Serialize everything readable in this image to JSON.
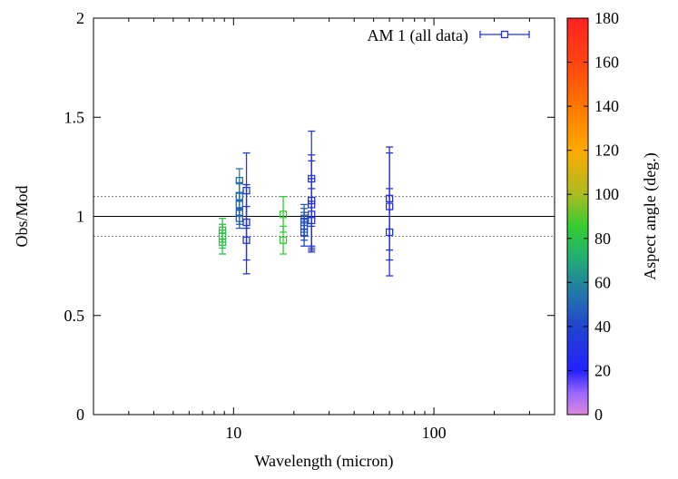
{
  "chart_data": {
    "type": "scatter",
    "title": "",
    "xlabel": "Wavelength (micron)",
    "ylabel": "Obs/Mod",
    "x_scale": "log",
    "xlim": [
      2,
      400
    ],
    "ylim": [
      0,
      2
    ],
    "x_ticks": [
      10,
      100
    ],
    "x_tick_labels": [
      "10",
      "100"
    ],
    "y_ticks": [
      0,
      0.5,
      1,
      1.5,
      2
    ],
    "y_tick_labels": [
      "0",
      "0.5",
      "1",
      "1.5",
      "2"
    ],
    "grid": false,
    "legend": {
      "position": "top-right",
      "entries": [
        "AM 1 (all data)"
      ]
    },
    "reference_lines": [
      {
        "y": 1.0,
        "style": "solid"
      },
      {
        "y": 0.9,
        "style": "dotted"
      },
      {
        "y": 1.1,
        "style": "dotted"
      }
    ],
    "colorbar": {
      "label": "Aspect angle (deg.)",
      "range": [
        0,
        180
      ],
      "ticks": [
        0,
        20,
        40,
        60,
        80,
        100,
        120,
        140,
        160,
        180
      ],
      "tick_labels": [
        "0",
        "20",
        "40",
        "60",
        "80",
        "100",
        "120",
        "140",
        "160",
        "180"
      ],
      "color_stops": [
        {
          "value": 0,
          "color": "#dd88dd"
        },
        {
          "value": 10,
          "color": "#9966ff"
        },
        {
          "value": 20,
          "color": "#2222ff"
        },
        {
          "value": 40,
          "color": "#2244cc"
        },
        {
          "value": 55,
          "color": "#2277aa"
        },
        {
          "value": 70,
          "color": "#22aa77"
        },
        {
          "value": 85,
          "color": "#33cc33"
        },
        {
          "value": 100,
          "color": "#aabb22"
        },
        {
          "value": 120,
          "color": "#ffaa00"
        },
        {
          "value": 140,
          "color": "#ff7700"
        },
        {
          "value": 160,
          "color": "#ff4411"
        },
        {
          "value": 180,
          "color": "#ff2222"
        }
      ]
    },
    "series": [
      {
        "name": "AM 1 (all data)",
        "points": [
          {
            "x": 8.8,
            "y": 0.93,
            "err": 0.06,
            "angle": 80
          },
          {
            "x": 8.8,
            "y": 0.9,
            "err": 0.06,
            "angle": 80
          },
          {
            "x": 8.8,
            "y": 0.87,
            "err": 0.06,
            "angle": 80
          },
          {
            "x": 10.7,
            "y": 1.18,
            "err": 0.06,
            "angle": 55
          },
          {
            "x": 10.7,
            "y": 1.1,
            "err": 0.07,
            "angle": 52
          },
          {
            "x": 10.7,
            "y": 1.06,
            "err": 0.06,
            "angle": 50
          },
          {
            "x": 10.7,
            "y": 1.02,
            "err": 0.06,
            "angle": 50
          },
          {
            "x": 10.7,
            "y": 0.99,
            "err": 0.05,
            "angle": 48
          },
          {
            "x": 11.6,
            "y": 1.13,
            "err": 0.19,
            "angle": 35
          },
          {
            "x": 11.6,
            "y": 0.97,
            "err": 0.19,
            "angle": 30
          },
          {
            "x": 11.6,
            "y": 0.88,
            "err": 0.17,
            "angle": 30
          },
          {
            "x": 17.7,
            "y": 1.01,
            "err": 0.09,
            "angle": 85
          },
          {
            "x": 17.7,
            "y": 0.88,
            "err": 0.07,
            "angle": 85
          },
          {
            "x": 22.5,
            "y": 0.99,
            "err": 0.07,
            "angle": 50
          },
          {
            "x": 22.5,
            "y": 0.97,
            "err": 0.07,
            "angle": 48
          },
          {
            "x": 22.5,
            "y": 0.95,
            "err": 0.07,
            "angle": 45
          },
          {
            "x": 22.5,
            "y": 0.92,
            "err": 0.07,
            "angle": 40
          },
          {
            "x": 24.5,
            "y": 1.19,
            "err": 0.24,
            "angle": 35
          },
          {
            "x": 24.5,
            "y": 1.08,
            "err": 0.23,
            "angle": 30
          },
          {
            "x": 24.5,
            "y": 1.06,
            "err": 0.22,
            "angle": 30
          },
          {
            "x": 24.5,
            "y": 1.01,
            "err": 0.18,
            "angle": 28
          },
          {
            "x": 24.5,
            "y": 0.98,
            "err": 0.16,
            "angle": 28
          },
          {
            "x": 60,
            "y": 1.09,
            "err": 0.26,
            "angle": 30
          },
          {
            "x": 60,
            "y": 1.05,
            "err": 0.27,
            "angle": 30
          },
          {
            "x": 60,
            "y": 0.92,
            "err": 0.22,
            "angle": 30
          }
        ]
      }
    ]
  }
}
